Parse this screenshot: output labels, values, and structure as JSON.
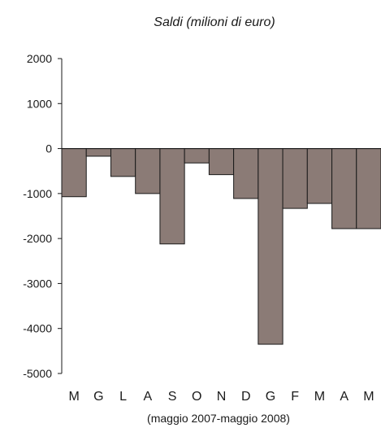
{
  "chart_data": {
    "type": "bar",
    "title": "Saldi (milioni di euro)",
    "xlabel": "(maggio 2007-maggio 2008)",
    "ylabel": "",
    "ylim": [
      -5000,
      2000
    ],
    "yticks": [
      2000,
      1000,
      0,
      -1000,
      -2000,
      -3000,
      -4000,
      -5000
    ],
    "ytick_labels": [
      "2000",
      "1000",
      "0",
      "-1000",
      "-2000",
      "-3000",
      "-4000",
      "-5000"
    ],
    "categories": [
      "M",
      "G",
      "L",
      "A",
      "S",
      "O",
      "N",
      "D",
      "G",
      "F",
      "M",
      "A",
      "M"
    ],
    "values": [
      -1070,
      -170,
      -620,
      -1000,
      -2120,
      -320,
      -580,
      -1110,
      -4350,
      -1330,
      -1220,
      -1780,
      -1780
    ],
    "colors": {
      "bar_fill": "#8b7b76",
      "bar_stroke": "#1a1a1a",
      "axis": "#1a1a1a"
    },
    "grid": false,
    "legend": "none"
  }
}
